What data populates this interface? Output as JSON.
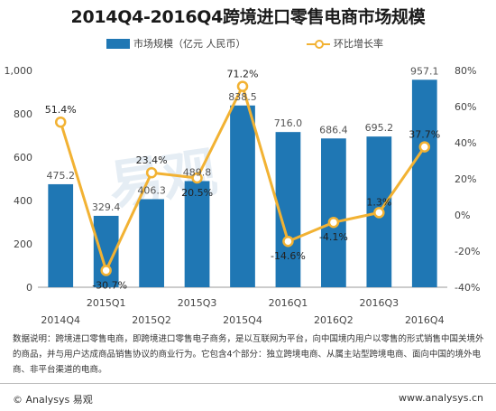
{
  "title": "2014Q4-2016Q4跨境进口零售电商市场规模",
  "legend": {
    "bar_label": "市场规模（亿元 人民币）",
    "line_label": "环比增长率"
  },
  "watermark": "易观",
  "notes": "数据说明：跨境进口零售电商，即跨境进口零售电子商务，是以互联网为平台，向中国境内用户以零售的形式销售中国关境外的商品，并与用户达成商品销售协议的商业行为。它包含4个部分：独立跨境电商、从属主站型跨境电商、面向中国的境外电商、非平台渠道的电商。",
  "footer": {
    "brand": "© Analysys 易观",
    "url": "www.analysys.cn"
  },
  "colors": {
    "bar": "#1f77b4",
    "line": "#f2b233",
    "grid": "#d6d6d6"
  },
  "chart_data": {
    "type": "bar",
    "title": "2014Q4-2016Q4跨境进口零售电商市场规模",
    "categories": [
      "2014Q4",
      "2015Q1",
      "2015Q2",
      "2015Q3",
      "2015Q4",
      "2016Q1",
      "2016Q2",
      "2016Q3",
      "2016Q4"
    ],
    "series": [
      {
        "name": "市场规模（亿元 人民币）",
        "type": "bar",
        "axis": "left",
        "values": [
          475.2,
          329.4,
          406.3,
          489.8,
          838.5,
          716.0,
          686.4,
          695.2,
          957.1
        ],
        "labels": [
          "475.2",
          "329.4",
          "406.3",
          "489.8",
          "838.5",
          "716.0",
          "686.4",
          "695.2",
          "957.1"
        ]
      },
      {
        "name": "环比增长率",
        "type": "line",
        "axis": "right",
        "values": [
          51.4,
          -30.7,
          23.4,
          20.5,
          71.2,
          -14.6,
          -4.1,
          1.3,
          37.7
        ],
        "labels": [
          "51.4%",
          "-30.7%",
          "23.4%",
          "20.5%",
          "71.2%",
          "-14.6%",
          "-4.1%",
          "1.3%",
          "37.7%"
        ]
      }
    ],
    "y_left": {
      "min": 0,
      "max": 1000,
      "ticks": [
        "0",
        "200",
        "400",
        "600",
        "800",
        "1,000"
      ]
    },
    "y_right": {
      "min": -40,
      "max": 80,
      "ticks": [
        "-40%",
        "-20%",
        "0%",
        "20%",
        "40%",
        "60%",
        "80%"
      ]
    },
    "grid": false,
    "legend_position": "top"
  }
}
